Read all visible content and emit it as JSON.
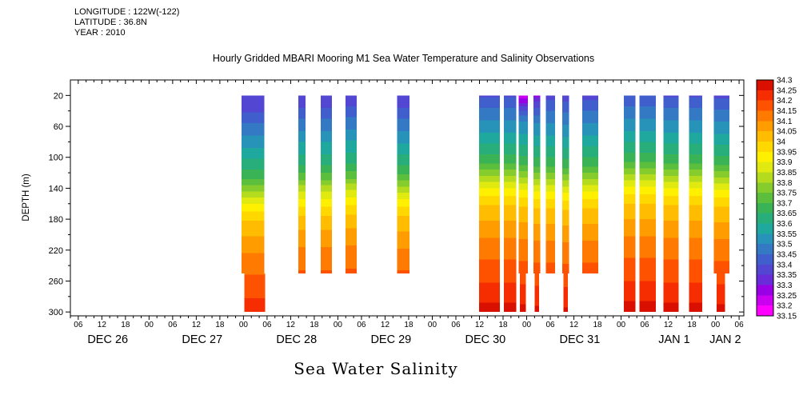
{
  "info": {
    "longitude": "LONGITUDE : 122W(-122)",
    "latitude": "LATITUDE : 36.8N",
    "year": "YEAR : 2010"
  },
  "title": "Hourly Gridded MBARI Mooring M1 Sea Water Temperature and Salinity Observations",
  "xlabel": "Sea Water Salinity",
  "ylabel": "DEPTH (m)",
  "chart_data": {
    "type": "heatmap",
    "description": "Depth-time filled-contour plot of sea water salinity at MBARI Mooring M1; vertical colored strips are periods with data, white gaps are missing data.",
    "x_axis": {
      "t_min": 4,
      "t_max": 175.2,
      "tick_start": 6,
      "tick_step": 6,
      "tick_end": 174,
      "minor_step": 2,
      "hour_label_cycle": [
        "06",
        "12",
        "18",
        "00"
      ],
      "date_labels": [
        {
          "label": "DEC 26",
          "t": 13.5
        },
        {
          "label": "DEC 27",
          "t": 37.5
        },
        {
          "label": "DEC 28",
          "t": 61.5
        },
        {
          "label": "DEC 29",
          "t": 85.5
        },
        {
          "label": "DEC 30",
          "t": 109.5
        },
        {
          "label": "DEC 31",
          "t": 133.5
        },
        {
          "label": "JAN 1",
          "t": 157.5
        },
        {
          "label": "JAN 2",
          "t": 170.5
        }
      ]
    },
    "y_axis": {
      "d_min": 0,
      "d_max": 305,
      "major_ticks": [
        20,
        60,
        100,
        140,
        180,
        220,
        260,
        300
      ],
      "minor_ticks": [
        40,
        80,
        120,
        160,
        200,
        240,
        280
      ]
    },
    "levels": {
      "min": 33.15,
      "max": 34.3,
      "step": 0.05
    },
    "colorbar_labels": [
      "34.3",
      "34.25",
      "34.2",
      "34.15",
      "34.1",
      "34.05",
      "34",
      "33.95",
      "33.9",
      "33.85",
      "33.8",
      "33.75",
      "33.7",
      "33.65",
      "33.6",
      "33.55",
      "33.5",
      "33.45",
      "33.4",
      "33.35",
      "33.3",
      "33.25",
      "33.2",
      "33.15"
    ],
    "colors": [
      "#FF00FF",
      "#CC00F0",
      "#9900E6",
      "#6A2BD9",
      "#5246D2",
      "#415FCC",
      "#3379C4",
      "#2893B8",
      "#1FA99E",
      "#27AE7A",
      "#39B356",
      "#5BBE3C",
      "#86CC2D",
      "#B4DB1E",
      "#E0EA10",
      "#FFF000",
      "#FFD800",
      "#FFBC00",
      "#FF9D00",
      "#FF7A00",
      "#FF5200",
      "#F52D00",
      "#D90F00"
    ],
    "base_profile": [
      [
        20,
        33.36
      ],
      [
        40,
        33.44
      ],
      [
        60,
        33.5
      ],
      [
        80,
        33.57
      ],
      [
        100,
        33.63
      ],
      [
        120,
        33.73
      ],
      [
        140,
        33.86
      ],
      [
        155,
        33.94
      ],
      [
        170,
        34.0
      ],
      [
        185,
        34.04
      ],
      [
        200,
        34.08
      ],
      [
        220,
        34.12
      ],
      [
        240,
        34.15
      ],
      [
        260,
        34.18
      ],
      [
        300,
        34.26
      ]
    ],
    "purple_profile": [
      [
        20,
        33.17
      ],
      [
        26,
        33.22
      ],
      [
        32,
        33.28
      ],
      [
        40,
        33.36
      ],
      [
        50,
        33.44
      ],
      [
        60,
        33.5
      ]
    ],
    "violet_profile": [
      [
        20,
        33.27
      ],
      [
        30,
        33.34
      ],
      [
        42,
        33.42
      ],
      [
        60,
        33.5
      ]
    ],
    "strips": [
      {
        "t0": 47.5,
        "t1": 53.3,
        "dmax": 300,
        "shift": 12,
        "surf": "normal",
        "bt0": 48.2,
        "bt1": 53.5
      },
      {
        "t0": 61.9,
        "t1": 63.8,
        "dmax": 250,
        "shift": 5,
        "surf": "normal"
      },
      {
        "t0": 67.6,
        "t1": 70.5,
        "dmax": 250,
        "shift": 5,
        "surf": "normal"
      },
      {
        "t0": 73.9,
        "t1": 76.8,
        "dmax": 250,
        "shift": 3,
        "surf": "normal"
      },
      {
        "t0": 87.1,
        "t1": 90.2,
        "dmax": 250,
        "shift": 6,
        "surf": "normal"
      },
      {
        "t0": 107.9,
        "t1": 113.2,
        "dmax": 300,
        "shift": -8,
        "surf": "normal"
      },
      {
        "t0": 114.2,
        "t1": 117.4,
        "dmax": 300,
        "shift": -8,
        "surf": "normal"
      },
      {
        "t0": 118.0,
        "t1": 120.3,
        "dmax": 300,
        "shift": -6,
        "surf": "purple",
        "bt0": 118.3,
        "bt1": 119.8
      },
      {
        "t0": 121.7,
        "t1": 123.5,
        "dmax": 300,
        "shift": -4,
        "surf": "violet",
        "bt0": 122.0,
        "bt1": 123.1
      },
      {
        "t0": 124.9,
        "t1": 127.2,
        "dmax": 250,
        "shift": -4,
        "surf": "normal"
      },
      {
        "t0": 129.0,
        "t1": 130.8,
        "dmax": 300,
        "shift": -2,
        "surf": "normal",
        "bt0": 129.3,
        "bt1": 130.5
      },
      {
        "t0": 134.1,
        "t1": 138.2,
        "dmax": 250,
        "shift": -4,
        "surf": "normal"
      },
      {
        "t0": 144.7,
        "t1": 147.7,
        "dmax": 300,
        "shift": -10,
        "surf": "normal"
      },
      {
        "t0": 148.7,
        "t1": 152.8,
        "dmax": 300,
        "shift": -10,
        "surf": "normal"
      },
      {
        "t0": 154.8,
        "t1": 158.6,
        "dmax": 300,
        "shift": -8,
        "surf": "normal"
      },
      {
        "t0": 161.3,
        "t1": 164.6,
        "dmax": 300,
        "shift": -8,
        "surf": "normal"
      },
      {
        "t0": 167.6,
        "t1": 171.5,
        "dmax": 300,
        "shift": -6,
        "surf": "normal",
        "bt0": 168.3,
        "bt1": 170.4
      }
    ]
  }
}
